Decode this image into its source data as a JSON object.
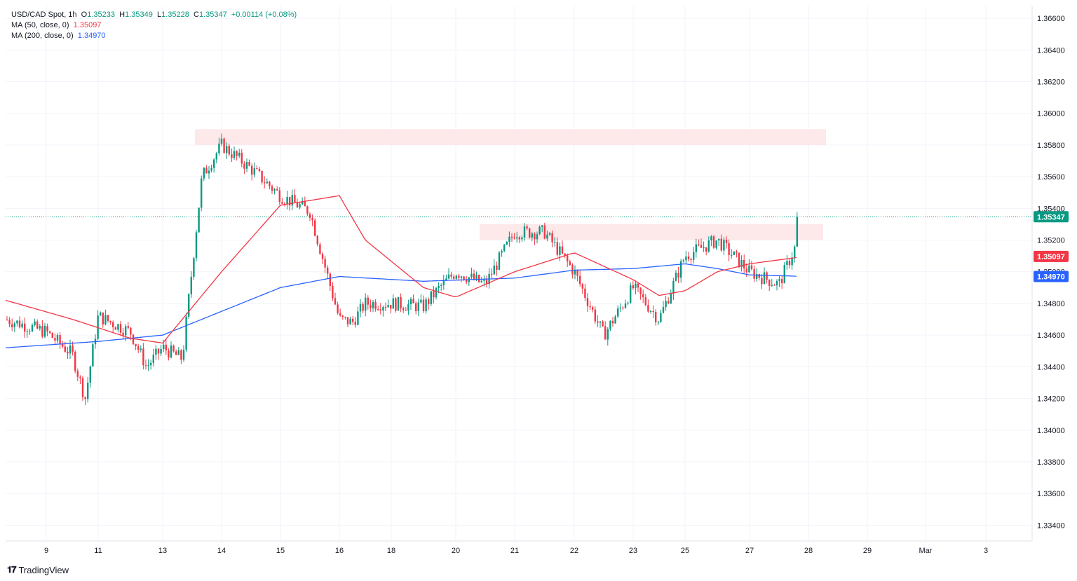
{
  "legend": {
    "symbol": "USD/CAD Spot, 1h",
    "open_label": "O",
    "open": "1.35233",
    "high_label": "H",
    "high": "1.35349",
    "low_label": "L",
    "low": "1.35228",
    "close_label": "C",
    "close": "1.35347",
    "change": "+0.00114 (+0.08%)",
    "ma50_label": "MA (50, close, 0)",
    "ma50_value": "1.35097",
    "ma200_label": "MA (200, close, 0)",
    "ma200_value": "1.34970"
  },
  "brand": {
    "logo_text": "TradingView",
    "icon": "tradingview-logo-icon"
  },
  "colors": {
    "up": "#089981",
    "down": "#f23645",
    "ma50": "#f23645",
    "ma200": "#2962ff",
    "zone": "#fde8ea",
    "grid": "#f0f3fa"
  },
  "chart_data": {
    "type": "candlestick",
    "title": "USD/CAD Spot, 1h",
    "ylim": [
      1.333,
      1.3668
    ],
    "y_ticks": [
      "1.36600",
      "1.36400",
      "1.36200",
      "1.36000",
      "1.35800",
      "1.35600",
      "1.35400",
      "1.35200",
      "1.35000",
      "1.34800",
      "1.34600",
      "1.34400",
      "1.34200",
      "1.34000",
      "1.33800",
      "1.33600",
      "1.33400"
    ],
    "x_ticks": [
      "9",
      "11",
      "13",
      "14",
      "15",
      "16",
      "18",
      "20",
      "21",
      "22",
      "23",
      "25",
      "27",
      "28",
      "29",
      "Mar",
      "3"
    ],
    "grid": true,
    "last_price": 1.35347,
    "last_price_label": "1.35347",
    "ma50_last": 1.35097,
    "ma50_label": "1.35097",
    "ma200_last": 1.3497,
    "ma200_label": "1.34970",
    "resistance_zones": [
      {
        "from": "13",
        "to": "28",
        "low": 1.358,
        "high": 1.359
      },
      {
        "from": "20",
        "to": "28",
        "low": 1.352,
        "high": 1.353
      }
    ],
    "price_path": [
      [
        "8",
        1.347
      ],
      [
        "9",
        1.3462
      ],
      [
        "10",
        1.3448
      ],
      [
        "10",
        1.342
      ],
      [
        "11",
        1.3472
      ],
      [
        "12",
        1.3462
      ],
      [
        "12",
        1.344
      ],
      [
        "13",
        1.3452
      ],
      [
        "13",
        1.3445
      ],
      [
        "13",
        1.356
      ],
      [
        "14",
        1.358
      ],
      [
        "14",
        1.3565
      ],
      [
        "15",
        1.3548
      ],
      [
        "15",
        1.3538
      ],
      [
        "16",
        1.347
      ],
      [
        "16",
        1.3468
      ],
      [
        "17",
        1.348
      ],
      [
        "18",
        1.348
      ],
      [
        "19",
        1.3478
      ],
      [
        "19",
        1.349
      ],
      [
        "20",
        1.35
      ],
      [
        "20",
        1.3492
      ],
      [
        "21",
        1.3525
      ],
      [
        "21",
        1.3525
      ],
      [
        "22",
        1.35
      ],
      [
        "22",
        1.346
      ],
      [
        "23",
        1.349
      ],
      [
        "23",
        1.348
      ],
      [
        "24",
        1.347
      ],
      [
        "25",
        1.351
      ],
      [
        "26",
        1.352
      ],
      [
        "26",
        1.351
      ],
      [
        "27",
        1.35
      ],
      [
        "27",
        1.3492
      ],
      [
        "28",
        1.3535
      ]
    ],
    "ma50_path": [
      [
        "8",
        1.3482
      ],
      [
        "10",
        1.347
      ],
      [
        "12",
        1.3458
      ],
      [
        "13",
        1.3455
      ],
      [
        "14",
        1.35
      ],
      [
        "15",
        1.3542
      ],
      [
        "16",
        1.3548
      ],
      [
        "17",
        1.352
      ],
      [
        "19",
        1.349
      ],
      [
        "20",
        1.3484
      ],
      [
        "21",
        1.35
      ],
      [
        "22",
        1.3512
      ],
      [
        "23",
        1.3495
      ],
      [
        "24",
        1.3485
      ],
      [
        "25",
        1.3488
      ],
      [
        "26",
        1.35
      ],
      [
        "27",
        1.3505
      ],
      [
        "28",
        1.351
      ]
    ],
    "ma200_path": [
      [
        "8",
        1.3452
      ],
      [
        "11",
        1.3456
      ],
      [
        "13",
        1.346
      ],
      [
        "15",
        1.349
      ],
      [
        "16",
        1.3497
      ],
      [
        "19",
        1.3494
      ],
      [
        "21",
        1.3496
      ],
      [
        "22",
        1.3501
      ],
      [
        "23",
        1.3502
      ],
      [
        "25",
        1.3505
      ],
      [
        "26",
        1.3502
      ],
      [
        "27",
        1.3498
      ],
      [
        "28",
        1.3497
      ]
    ]
  }
}
